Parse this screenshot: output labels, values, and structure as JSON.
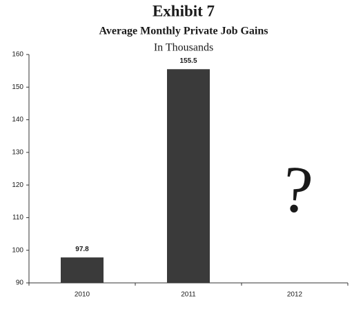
{
  "chart_data": {
    "type": "bar",
    "title": "Exhibit 7",
    "subtitle": "Average Monthly Private Job Gains",
    "unit_label": "In Thousands",
    "categories": [
      "2010",
      "2011",
      "2012"
    ],
    "values": [
      97.8,
      155.5,
      null
    ],
    "color": "#3a3a3a",
    "ylim": [
      90,
      160
    ],
    "yticks": [
      90,
      100,
      110,
      120,
      130,
      140,
      150,
      160
    ],
    "annotation": "?"
  }
}
